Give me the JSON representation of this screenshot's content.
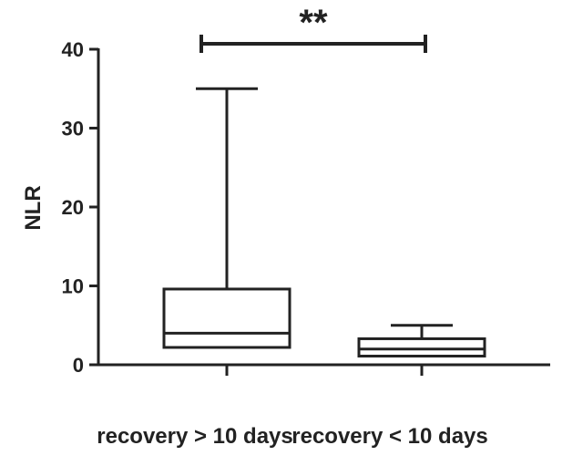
{
  "chart_data": {
    "type": "box",
    "ylabel": "NLR",
    "ylim": [
      0,
      40
    ],
    "yticks": [
      0,
      10,
      20,
      30,
      40
    ],
    "categories": [
      "recovery > 10 days",
      "recovery < 10 days"
    ],
    "boxes": [
      {
        "min": 2.2,
        "q1": 2.2,
        "median": 4.0,
        "q3": 9.6,
        "max": 35.0
      },
      {
        "min": 1.1,
        "q1": 1.1,
        "median": 2.0,
        "q3": 3.3,
        "max": 5.0
      }
    ],
    "significance": {
      "label": "**",
      "from": 0,
      "to": 1,
      "y": 41
    }
  }
}
